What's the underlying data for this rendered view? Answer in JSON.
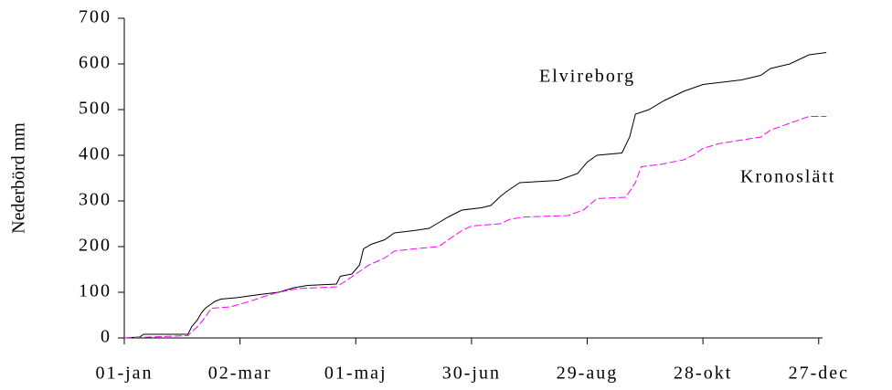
{
  "chart_data": {
    "type": "line",
    "y_label": "Nederbörd mm",
    "series": [
      {
        "name": "Elvireborg",
        "color": "#000000",
        "dash": false,
        "x": [
          0,
          8,
          10,
          33,
          35,
          38,
          40,
          42,
          47,
          50,
          58,
          70,
          80,
          88,
          95,
          110,
          112,
          118,
          122,
          124,
          128,
          135,
          140,
          150,
          158,
          162,
          168,
          175,
          185,
          190,
          195,
          198,
          205,
          225,
          235,
          240,
          245,
          258,
          262,
          265,
          272,
          280,
          290,
          300,
          320,
          330,
          335,
          345,
          355,
          364
        ],
        "values": [
          0,
          2,
          8,
          8,
          25,
          40,
          55,
          65,
          80,
          85,
          88,
          95,
          100,
          110,
          115,
          118,
          135,
          140,
          160,
          195,
          205,
          215,
          230,
          235,
          240,
          250,
          265,
          280,
          285,
          290,
          310,
          320,
          340,
          345,
          360,
          385,
          400,
          405,
          440,
          490,
          500,
          520,
          540,
          555,
          565,
          575,
          590,
          600,
          620,
          625
        ]
      },
      {
        "name": "Kronoslätt",
        "color": "#ff00ff",
        "dash": true,
        "x": [
          0,
          33,
          38,
          42,
          45,
          55,
          65,
          72,
          80,
          90,
          110,
          115,
          120,
          127,
          135,
          140,
          150,
          163,
          168,
          175,
          180,
          195,
          200,
          208,
          230,
          238,
          245,
          260,
          265,
          268,
          278,
          290,
          295,
          300,
          308,
          315,
          330,
          335,
          345,
          355,
          364
        ],
        "values": [
          0,
          5,
          25,
          45,
          65,
          68,
          80,
          90,
          100,
          108,
          112,
          125,
          140,
          160,
          175,
          190,
          195,
          200,
          215,
          235,
          245,
          250,
          260,
          265,
          268,
          280,
          305,
          308,
          340,
          375,
          380,
          390,
          400,
          415,
          425,
          430,
          440,
          455,
          470,
          485,
          485
        ]
      }
    ],
    "xlim": [
      0,
      362
    ],
    "xticks": [
      {
        "value": 0,
        "label": "01-jan"
      },
      {
        "value": 60,
        "label": "02-mar"
      },
      {
        "value": 120,
        "label": "01-maj"
      },
      {
        "value": 180,
        "label": "30-jun"
      },
      {
        "value": 240,
        "label": "29-aug"
      },
      {
        "value": 300,
        "label": "28-okt"
      },
      {
        "value": 360,
        "label": "27-dec"
      }
    ],
    "ylim": [
      0,
      700
    ],
    "yticks": [
      0,
      100,
      200,
      300,
      400,
      500,
      600,
      700
    ],
    "grid": false
  }
}
